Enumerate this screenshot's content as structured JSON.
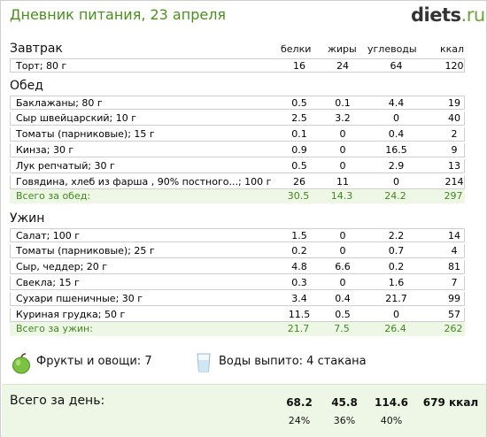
{
  "header": {
    "title": "Дневник питания, 23 апреля",
    "logo_main": "diets",
    "logo_suffix": ".ru"
  },
  "columns": [
    "белки",
    "жиры",
    "углеводы",
    "ккал"
  ],
  "breakfast": {
    "title": "Завтрак",
    "items": [
      {
        "name": "Торт; 80 г",
        "protein": "16",
        "fat": "24",
        "carbs": "64",
        "kcal": "120"
      }
    ]
  },
  "lunch": {
    "title": "Обед",
    "items": [
      {
        "name": "Баклажаны; 80 г",
        "protein": "0.5",
        "fat": "0.1",
        "carbs": "4.4",
        "kcal": "19"
      },
      {
        "name": "Сыр швейцарский; 10 г",
        "protein": "2.5",
        "fat": "3.2",
        "carbs": "0",
        "kcal": "40"
      },
      {
        "name": "Томаты (парниковые); 15 г",
        "protein": "0.1",
        "fat": "0",
        "carbs": "0.4",
        "kcal": "2"
      },
      {
        "name": "Кинза; 30 г",
        "protein": "0.9",
        "fat": "0",
        "carbs": "16.5",
        "kcal": "9"
      },
      {
        "name": "Лук репчатый; 30 г",
        "protein": "0.5",
        "fat": "0",
        "carbs": "2.9",
        "kcal": "13"
      },
      {
        "name": "Говядина, хлеб из фарша , 90% постного...; 100 г",
        "protein": "26",
        "fat": "11",
        "carbs": "0",
        "kcal": "214"
      }
    ],
    "total": {
      "label": "Всего за обед:",
      "protein": "30.5",
      "fat": "14.3",
      "carbs": "24.2",
      "kcal": "297"
    }
  },
  "dinner": {
    "title": "Ужин",
    "items": [
      {
        "name": "Салат; 100 г",
        "protein": "1.5",
        "fat": "0",
        "carbs": "2.2",
        "kcal": "14"
      },
      {
        "name": "Томаты (парниковые); 25 г",
        "protein": "0.2",
        "fat": "0",
        "carbs": "0.7",
        "kcal": "4"
      },
      {
        "name": "Сыр, чеддер; 20 г",
        "protein": "4.8",
        "fat": "6.6",
        "carbs": "0.2",
        "kcal": "81"
      },
      {
        "name": "Свекла; 15 г",
        "protein": "0.3",
        "fat": "0",
        "carbs": "1.6",
        "kcal": "7"
      },
      {
        "name": "Сухари пшеничные; 30 г",
        "protein": "3.4",
        "fat": "0.4",
        "carbs": "21.7",
        "kcal": "99"
      },
      {
        "name": "Куриная грудка; 50 г",
        "protein": "11.5",
        "fat": "0.5",
        "carbs": "0",
        "kcal": "57"
      }
    ],
    "total": {
      "label": "Всего за ужин:",
      "protein": "21.7",
      "fat": "7.5",
      "carbs": "26.4",
      "kcal": "262"
    }
  },
  "summary": {
    "fruits": "Фрукты и овощи: 7",
    "water": "Воды выпито: 4 стакана",
    "fruit_icon": "green-apple-icon",
    "water_icon": "water-glass-icon"
  },
  "day_total": {
    "label": "Всего за день:",
    "protein": "68.2",
    "fat": "45.8",
    "carbs": "114.6",
    "kcal": "679 ккал",
    "protein_pct": "24%",
    "fat_pct": "36%",
    "carbs_pct": "40%"
  },
  "colors": {
    "title_green": "#4a8f1c",
    "total_green": "#3e8a1a",
    "total_bg": "#eef7e6"
  }
}
